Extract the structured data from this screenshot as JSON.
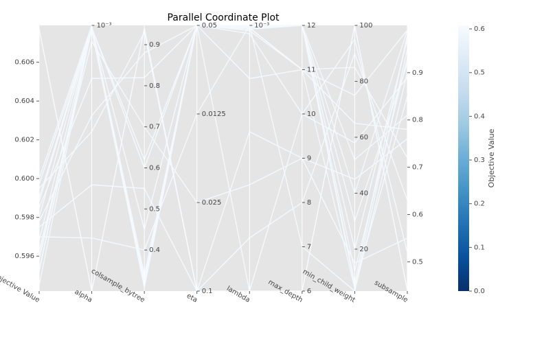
{
  "chart_data": {
    "type": "parallel",
    "title": "Parallel Coordinate Plot",
    "axes": [
      {
        "label": "Objective Value",
        "lim": [
          0.5942,
          0.6079
        ],
        "ticks": [
          0.596,
          0.598,
          {
            "value": 0.6,
            "label": "0.600"
          },
          0.602,
          0.604,
          0.606
        ],
        "tick_side": "left"
      },
      {
        "label": "alpha",
        "log": true,
        "lim": [
          1e-08,
          0.001
        ],
        "ticks": [
          {
            "value": 0.001,
            "label": "10⁻³"
          }
        ]
      },
      {
        "label": "colsample_bytree",
        "lim": [
          0.3,
          0.947
        ],
        "ticks": [
          0.4,
          0.5,
          0.6,
          0.7,
          0.8,
          0.9
        ]
      },
      {
        "label": "eta",
        "lim": [
          0,
          3
        ],
        "ticks": [
          {
            "value": 0,
            "label": "0.1"
          },
          {
            "value": 1,
            "label": "0.025"
          },
          {
            "value": 2,
            "label": "0.0125"
          },
          {
            "value": 3,
            "label": "0.05"
          }
        ]
      },
      {
        "label": "lambda",
        "log": true,
        "lim": [
          1e-08,
          0.001
        ],
        "ticks": [
          {
            "value": 0.001,
            "label": "10⁻³"
          }
        ]
      },
      {
        "label": "max_depth",
        "lim": [
          6,
          12
        ],
        "ticks": [
          6,
          7,
          8,
          9,
          10,
          11,
          12
        ]
      },
      {
        "label": "min_child_weight",
        "lim": [
          5,
          100
        ],
        "ticks": [
          20,
          40,
          60,
          80,
          100
        ]
      },
      {
        "label": "subsample",
        "lim": [
          0.438,
          1.0
        ],
        "ticks": [
          0.5,
          0.6,
          0.7,
          0.8,
          0.9
        ]
      }
    ],
    "series": [
      {
        "values": [
          0.5953,
          0.00095,
          0.32,
          3,
          0.0009,
          12,
          8,
          0.98
        ]
      },
      {
        "values": [
          0.596,
          0.0008,
          0.31,
          3,
          0.0009,
          11,
          6,
          0.95
        ]
      },
      {
        "values": [
          0.5968,
          0.0009,
          0.33,
          3,
          0.00085,
          12,
          30,
          0.92
        ]
      },
      {
        "values": [
          0.5975,
          1e-06,
          0.55,
          0,
          1e-05,
          9,
          45,
          0.76
        ]
      },
      {
        "values": [
          0.598,
          0.0009,
          0.62,
          3,
          0.0007,
          10,
          58,
          0.89
        ]
      },
      {
        "values": [
          0.5985,
          0.0001,
          0.82,
          3,
          0.0009,
          11,
          75,
          0.99
        ]
      },
      {
        "values": [
          0.599,
          0.00098,
          0.31,
          3,
          0.00095,
          12,
          7,
          0.85
        ]
      },
      {
        "values": [
          0.5995,
          1e-05,
          0.93,
          0,
          1e-07,
          8,
          90,
          0.63
        ]
      },
      {
        "values": [
          0.5997,
          0.0009,
          0.45,
          3,
          0.0009,
          12,
          20,
          0.97
        ]
      },
      {
        "values": [
          0.6,
          0.001,
          0.31,
          3,
          0.0001,
          11,
          85,
          0.72
        ]
      },
      {
        "values": [
          0.5958,
          0.0009,
          0.34,
          3,
          0.00098,
          12,
          40,
          0.99
        ]
      },
      {
        "values": [
          0.5963,
          0.0005,
          0.7,
          1,
          1e-06,
          9,
          15,
          0.55
        ]
      },
      {
        "values": [
          0.6077,
          1e-08,
          0.94,
          0,
          1e-08,
          6,
          100,
          0.44
        ]
      },
      {
        "values": [
          0.5952,
          0.00097,
          0.32,
          3,
          0.00099,
          12,
          52,
          0.81
        ]
      },
      {
        "values": [
          0.597,
          1e-07,
          0.4,
          2,
          0.001,
          7,
          5,
          0.9
        ]
      },
      {
        "values": [
          0.5988,
          0.0009,
          0.6,
          3,
          0.0008,
          11,
          65,
          0.78
        ]
      },
      {
        "values": [
          0.5945,
          0.00095,
          0.33,
          3,
          0.00096,
          12,
          12,
          0.93
        ]
      },
      {
        "values": [
          0.5978,
          2e-05,
          0.88,
          3,
          1e-08,
          10,
          95,
          0.52
        ]
      }
    ],
    "colorbar": {
      "label": "Objective Value",
      "lim": [
        0,
        0.608
      ],
      "ticks": [
        {
          "value": 0,
          "label": "0.0"
        },
        0.1,
        0.2,
        0.3,
        0.4,
        0.5,
        0.6
      ],
      "colormap": [
        "#08306b",
        "#08519c",
        "#2171b5",
        "#4292c6",
        "#6baed6",
        "#9ecae1",
        "#c6dbef",
        "#deebf7",
        "#f7fbff"
      ]
    }
  }
}
